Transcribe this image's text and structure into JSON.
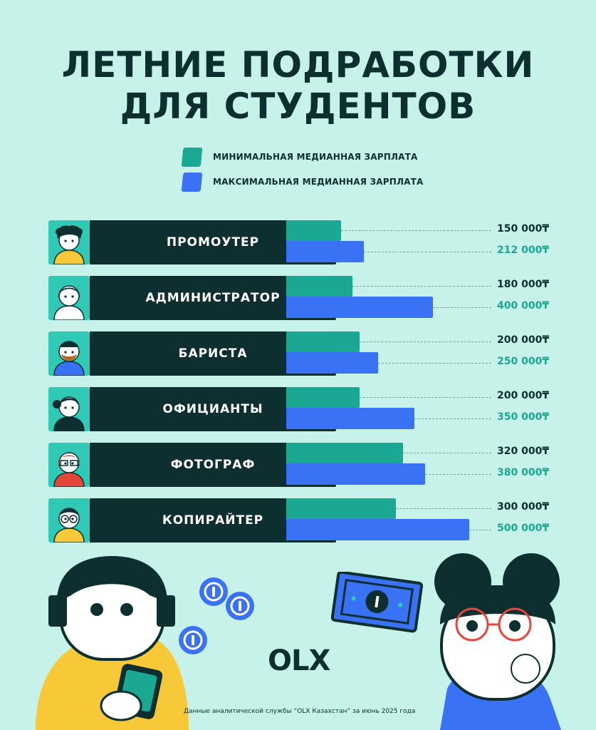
{
  "title": {
    "line1": "ЛЕТНИЕ ПОДРАБОТКИ",
    "line2": "ДЛЯ СТУДЕНТОВ"
  },
  "legend": {
    "min": {
      "label": "МИНИМАЛЬНАЯ МЕДИАННАЯ ЗАРПЛАТА",
      "color": "#1aa892"
    },
    "max": {
      "label": "МАКСИМАЛЬНАЯ МЕДИАННАЯ ЗАРПЛАТА",
      "color": "#3a72f5"
    }
  },
  "chart_data": {
    "type": "bar",
    "orientation": "horizontal",
    "categories": [
      "ПРОМОУТЕР",
      "АДМИНИСТРАТОР",
      "БАРИСТА",
      "ОФИЦИАНТЫ",
      "ФОТОГРАФ",
      "КОПИРАЙТЕР"
    ],
    "series": [
      {
        "name": "МИНИМАЛЬНАЯ МЕДИАННАЯ ЗАРПЛАТА",
        "color": "#1aa892",
        "values": [
          150000,
          180000,
          200000,
          200000,
          320000,
          300000
        ]
      },
      {
        "name": "МАКСИМАЛЬНАЯ МЕДИАННАЯ ЗАРПЛАТА",
        "color": "#3a72f5",
        "values": [
          212000,
          400000,
          250000,
          350000,
          380000,
          500000
        ]
      }
    ],
    "value_labels": {
      "min": [
        "150 000₸",
        "180 000₸",
        "200 000₸",
        "200 000₸",
        "320 000₸",
        "300 000₸"
      ],
      "max": [
        "212 000₸",
        "400 000₸",
        "250 000₸",
        "350 000₸",
        "380 000₸",
        "500 000₸"
      ]
    },
    "xlim": [
      0,
      500000
    ]
  },
  "icons": [
    "promoter-avatar-icon",
    "administrator-avatar-icon",
    "barista-avatar-icon",
    "waiter-avatar-icon",
    "photographer-avatar-icon",
    "copywriter-avatar-icon"
  ],
  "logo": "OLX",
  "footnote": "Данные аналитической службы “OLX Казахстан” за июнь 2025 года"
}
